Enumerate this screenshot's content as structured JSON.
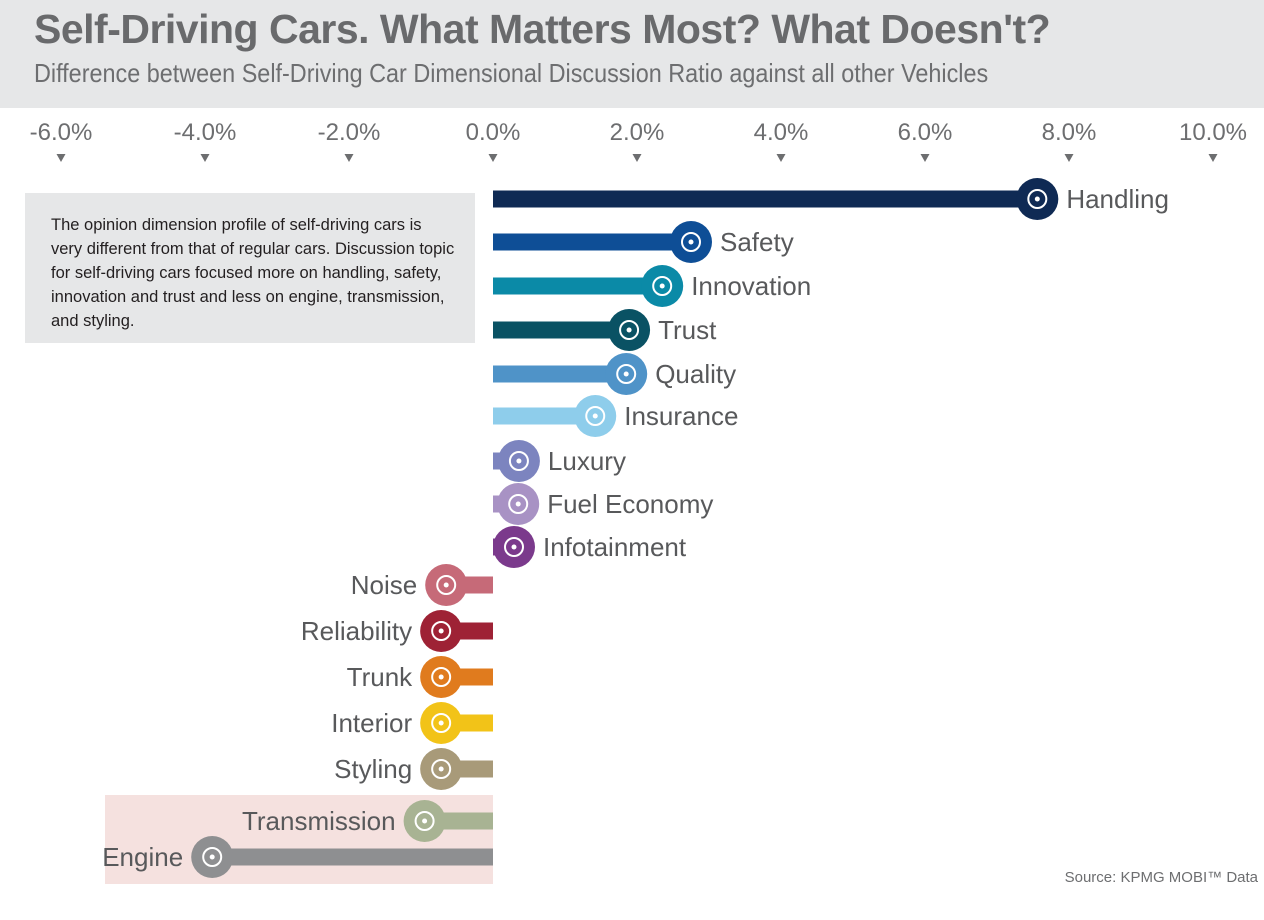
{
  "header": {
    "title": "Self-Driving Cars. What Matters Most? What Doesn't?",
    "subtitle": "Difference between Self-Driving Car Dimensional Discussion Ratio against all other Vehicles"
  },
  "note": {
    "text": "The opinion dimension profile of self-driving cars is very different from that of regular cars. Discussion topic for self-driving cars focused more on handling, safety, innovation and trust and less on engine, transmission, and styling."
  },
  "source": "Source: KPMG MOBI™ Data",
  "chart_data": {
    "type": "bar",
    "orientation": "horizontal",
    "title": "Self-Driving Cars. What Matters Most? What Doesn't?",
    "subtitle": "Difference between Self-Driving Car Dimensional Discussion Ratio against all other Vehicles",
    "xlim": [
      -0.06,
      0.1
    ],
    "ticks": [
      {
        "value": -0.06,
        "label": "-6.0%"
      },
      {
        "value": -0.04,
        "label": "-4.0%"
      },
      {
        "value": -0.02,
        "label": "-2.0%"
      },
      {
        "value": 0.0,
        "label": "0.0%"
      },
      {
        "value": 0.02,
        "label": "2.0%"
      },
      {
        "value": 0.04,
        "label": "4.0%"
      },
      {
        "value": 0.06,
        "label": "6.0%"
      },
      {
        "value": 0.08,
        "label": "8.0%"
      },
      {
        "value": 0.1,
        "label": "10.0%"
      }
    ],
    "grid": false,
    "highlighted_categories": [
      "Transmission",
      "Engine"
    ],
    "bars": [
      {
        "category": "Handling",
        "value": 0.0756,
        "color": "#0f2a54",
        "icon": "steering-wheel-icon"
      },
      {
        "category": "Safety",
        "value": 0.0275,
        "color": "#0e4e96",
        "icon": "seatbelt-icon"
      },
      {
        "category": "Innovation",
        "value": 0.0235,
        "color": "#0b8aa7",
        "icon": "lightbulb-icon"
      },
      {
        "category": "Trust",
        "value": 0.0189,
        "color": "#0a5264",
        "icon": "thumbs-up-icon"
      },
      {
        "category": "Quality",
        "value": 0.0185,
        "color": "#4f93c8",
        "icon": "car-wrench-icon"
      },
      {
        "category": "Insurance",
        "value": 0.0142,
        "color": "#8ecdeb",
        "icon": "insured-car-icon"
      },
      {
        "category": "Luxury",
        "value": 0.0036,
        "color": "#7c84bf",
        "icon": "luxury-car-icon"
      },
      {
        "category": "Fuel Economy",
        "value": 0.0035,
        "color": "#a892c4",
        "icon": "fuel-pump-icon"
      },
      {
        "category": "Infotainment",
        "value": 0.0029,
        "color": "#7b3a8c",
        "icon": "map-icon"
      },
      {
        "category": "Noise",
        "value": -0.0065,
        "color": "#c66a78",
        "icon": "noisy-car-icon"
      },
      {
        "category": "Reliability",
        "value": -0.0072,
        "color": "#9e2235",
        "icon": "speedometer-icon"
      },
      {
        "category": "Trunk",
        "value": -0.0072,
        "color": "#e07b1e",
        "icon": "luggage-icon"
      },
      {
        "category": "Interior",
        "value": -0.0072,
        "color": "#f2c318",
        "icon": "gear-shifter-icon"
      },
      {
        "category": "Styling",
        "value": -0.0072,
        "color": "#a89a79",
        "icon": "sports-car-icon"
      },
      {
        "category": "Transmission",
        "value": -0.0095,
        "color": "#a8b393",
        "icon": "piston-icon"
      },
      {
        "category": "Engine",
        "value": -0.039,
        "color": "#8e8f91",
        "icon": "engine-icon"
      }
    ]
  }
}
